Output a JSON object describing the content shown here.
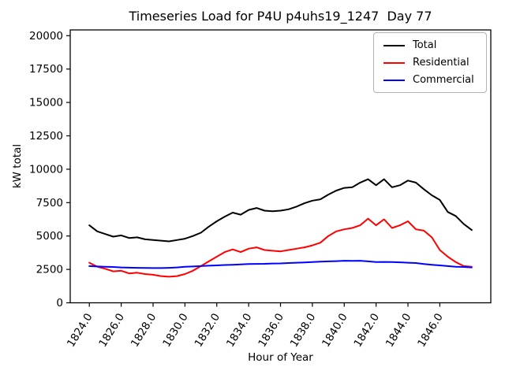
{
  "window": {
    "background_color": "#ffffff"
  },
  "chart_data": {
    "type": "line",
    "title": "Timeseries Load for P4U p4uhs19_1247  Day 77",
    "xlabel": "Hour of Year",
    "ylabel": "kW total",
    "grid": false,
    "legend_position": "upper right",
    "axis_color": "#000000",
    "xlim": [
      1822.8,
      1849.2
    ],
    "ylim": [
      0,
      20430
    ],
    "x_ticks": [
      1824,
      1826,
      1828,
      1830,
      1832,
      1834,
      1836,
      1838,
      1840,
      1842,
      1844,
      1846
    ],
    "x_tick_labels": [
      "1824.0",
      "1826.0",
      "1828.0",
      "1830.0",
      "1832.0",
      "1834.0",
      "1836.0",
      "1838.0",
      "1840.0",
      "1842.0",
      "1844.0",
      "1846.0"
    ],
    "x_tick_rotation_deg": 58,
    "y_ticks": [
      0,
      2500,
      5000,
      7500,
      10000,
      12500,
      15000,
      17500,
      20000
    ],
    "y_tick_labels": [
      "0",
      "2500",
      "5000",
      "7500",
      "10000",
      "12500",
      "15000",
      "17500",
      "20000"
    ],
    "x": [
      1824.0,
      1824.5,
      1825.0,
      1825.5,
      1826.0,
      1826.5,
      1827.0,
      1827.5,
      1828.0,
      1828.5,
      1829.0,
      1829.5,
      1830.0,
      1830.5,
      1831.0,
      1831.5,
      1832.0,
      1832.5,
      1833.0,
      1833.5,
      1834.0,
      1834.5,
      1835.0,
      1835.5,
      1836.0,
      1836.5,
      1837.0,
      1837.5,
      1838.0,
      1838.5,
      1839.0,
      1839.5,
      1840.0,
      1840.5,
      1841.0,
      1841.5,
      1842.0,
      1842.5,
      1843.0,
      1843.5,
      1844.0,
      1844.5,
      1845.0,
      1845.5,
      1846.0,
      1846.5,
      1847.0,
      1847.5,
      1848.0
    ],
    "series": [
      {
        "name": "Total",
        "color": "#000000",
        "values": [
          5800,
          5350,
          5150,
          4950,
          5050,
          4850,
          4900,
          4750,
          4700,
          4650,
          4600,
          4700,
          4800,
          5000,
          5250,
          5700,
          6100,
          6450,
          6750,
          6600,
          6950,
          7100,
          6900,
          6850,
          6900,
          7000,
          7200,
          7450,
          7650,
          7750,
          8100,
          8400,
          8600,
          8650,
          9000,
          9250,
          8800,
          9250,
          8650,
          8800,
          9150,
          9000,
          8500,
          8050,
          7700,
          6800,
          6500,
          5900,
          5450
        ]
      },
      {
        "name": "Residential",
        "color": "#ff0000",
        "values": [
          3000,
          2700,
          2550,
          2350,
          2400,
          2200,
          2250,
          2150,
          2100,
          2000,
          1950,
          2000,
          2150,
          2400,
          2750,
          3100,
          3450,
          3800,
          4000,
          3800,
          4050,
          4150,
          3950,
          3900,
          3850,
          3950,
          4050,
          4150,
          4300,
          4500,
          5000,
          5350,
          5500,
          5600,
          5800,
          6300,
          5800,
          6250,
          5600,
          5800,
          6100,
          5500,
          5400,
          4900,
          3950,
          3450,
          3050,
          2750,
          2700
        ]
      },
      {
        "name": "Commercial",
        "color": "#0000ff",
        "values": [
          2750,
          2720,
          2700,
          2680,
          2650,
          2630,
          2620,
          2610,
          2600,
          2600,
          2620,
          2650,
          2700,
          2720,
          2750,
          2780,
          2800,
          2830,
          2850,
          2870,
          2900,
          2910,
          2920,
          2940,
          2950,
          2980,
          3000,
          3020,
          3050,
          3080,
          3100,
          3120,
          3150,
          3140,
          3150,
          3100,
          3050,
          3060,
          3050,
          3030,
          3000,
          2980,
          2900,
          2850,
          2800,
          2750,
          2700,
          2680,
          2650
        ]
      }
    ]
  }
}
